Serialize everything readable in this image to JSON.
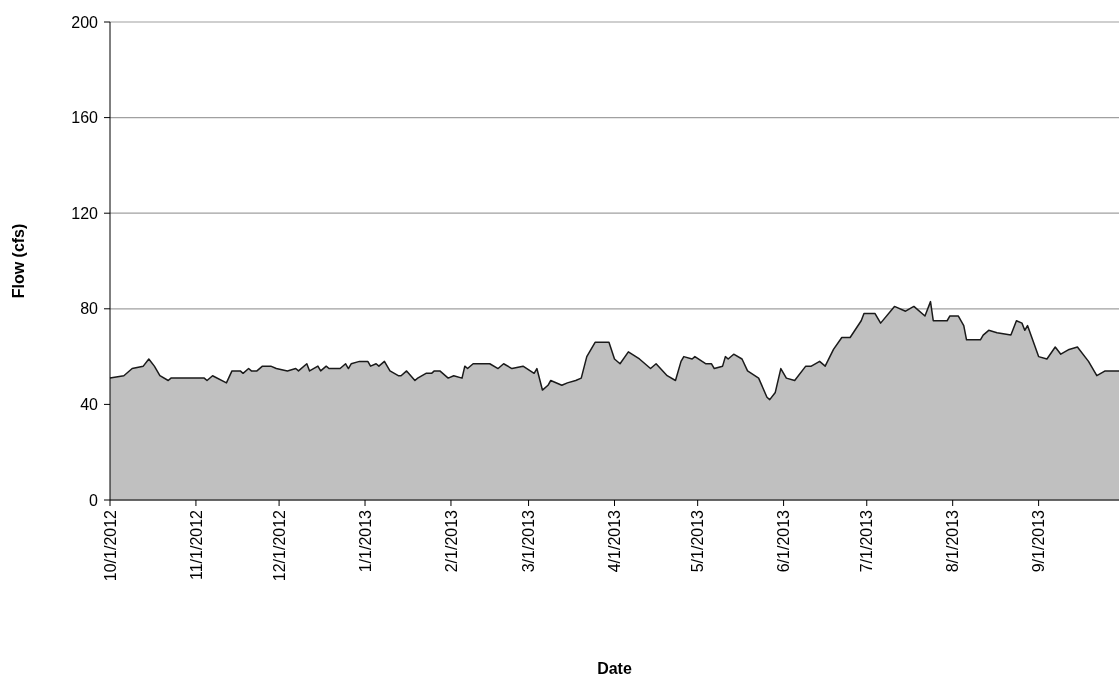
{
  "chart_data": {
    "type": "area",
    "xlabel": "Date",
    "ylabel": "Flow (cfs)",
    "x": [
      "2012-10-01",
      "2012-10-06",
      "2012-10-09",
      "2012-10-13",
      "2012-10-15",
      "2012-10-17",
      "2012-10-19",
      "2012-10-22",
      "2012-10-23",
      "2012-11-04",
      "2012-11-05",
      "2012-11-07",
      "2012-11-12",
      "2012-11-14",
      "2012-11-17",
      "2012-11-18",
      "2012-11-20",
      "2012-11-21",
      "2012-11-23",
      "2012-11-25",
      "2012-11-28",
      "2012-11-30",
      "2012-12-04",
      "2012-12-07",
      "2012-12-08",
      "2012-12-11",
      "2012-12-12",
      "2012-12-15",
      "2012-12-16",
      "2012-12-18",
      "2012-12-19",
      "2012-12-23",
      "2012-12-25",
      "2012-12-26",
      "2012-12-27",
      "2012-12-30",
      "2013-01-02",
      "2013-01-03",
      "2013-01-05",
      "2013-01-06",
      "2013-01-08",
      "2013-01-10",
      "2013-01-13",
      "2013-01-14",
      "2013-01-16",
      "2013-01-19",
      "2013-01-20",
      "2013-01-23",
      "2013-01-25",
      "2013-01-26",
      "2013-01-27",
      "2013-01-28",
      "2013-01-31",
      "2013-02-02",
      "2013-02-05",
      "2013-02-06",
      "2013-02-07",
      "2013-02-09",
      "2013-02-12",
      "2013-02-15",
      "2013-02-18",
      "2013-02-20",
      "2013-02-23",
      "2013-02-27",
      "2013-03-03",
      "2013-03-04",
      "2013-03-06",
      "2013-03-08",
      "2013-03-09",
      "2013-03-13",
      "2013-03-15",
      "2013-03-18",
      "2013-03-20",
      "2013-03-22",
      "2013-03-25",
      "2013-03-30",
      "2013-04-01",
      "2013-04-03",
      "2013-04-06",
      "2013-04-10",
      "2013-04-14",
      "2013-04-16",
      "2013-04-20",
      "2013-04-23",
      "2013-04-25",
      "2013-04-26",
      "2013-04-29",
      "2013-04-30",
      "2013-05-04",
      "2013-05-06",
      "2013-05-07",
      "2013-05-10",
      "2013-05-11",
      "2013-05-12",
      "2013-05-14",
      "2013-05-17",
      "2013-05-19",
      "2013-05-23",
      "2013-05-26",
      "2013-05-27",
      "2013-05-29",
      "2013-05-31",
      "2013-06-02",
      "2013-06-05",
      "2013-06-09",
      "2013-06-11",
      "2013-06-14",
      "2013-06-16",
      "2013-06-19",
      "2013-06-22",
      "2013-06-25",
      "2013-06-29",
      "2013-06-30",
      "2013-07-04",
      "2013-07-06",
      "2013-07-11",
      "2013-07-15",
      "2013-07-18",
      "2013-07-22",
      "2013-07-24",
      "2013-07-25",
      "2013-07-30",
      "2013-07-31",
      "2013-08-03",
      "2013-08-05",
      "2013-08-06",
      "2013-08-08",
      "2013-08-11",
      "2013-08-12",
      "2013-08-14",
      "2013-08-17",
      "2013-08-22",
      "2013-08-24",
      "2013-08-26",
      "2013-08-27",
      "2013-08-28",
      "2013-09-01",
      "2013-09-04",
      "2013-09-07",
      "2013-09-09",
      "2013-09-12",
      "2013-09-15",
      "2013-09-19",
      "2013-09-22",
      "2013-09-25",
      "2013-09-30"
    ],
    "series": [
      {
        "color": "#c0c0c0",
        "values": [
          51,
          52,
          55,
          56,
          59,
          56,
          52,
          50,
          51,
          51,
          50,
          52,
          49,
          54,
          54,
          53,
          55,
          54,
          54,
          56,
          56,
          55,
          54,
          55,
          54,
          57,
          54,
          56,
          54,
          56,
          55,
          55,
          57,
          55,
          57,
          58,
          58,
          56,
          57,
          56,
          58,
          54,
          52,
          52,
          54,
          50,
          51,
          53,
          53,
          54,
          54,
          54,
          51,
          52,
          51,
          56,
          55,
          57,
          57,
          57,
          55,
          57,
          55,
          56,
          53,
          55,
          46,
          48,
          50,
          48,
          49,
          50,
          51,
          60,
          66,
          66,
          59,
          57,
          62,
          59,
          55,
          57,
          52,
          50,
          58,
          60,
          59,
          60,
          57,
          57,
          55,
          56,
          60,
          59,
          61,
          59,
          54,
          51,
          43,
          42,
          45,
          55,
          51,
          50,
          56,
          56,
          58,
          56,
          63,
          68,
          68,
          75,
          78,
          78,
          74,
          81,
          79,
          81,
          77,
          83,
          75,
          75,
          77,
          77,
          73,
          67,
          67,
          67,
          69,
          71,
          70,
          69,
          75,
          74,
          71,
          73,
          60,
          59,
          64,
          61,
          63,
          64,
          58,
          52,
          54,
          54
        ]
      }
    ],
    "xlim": [
      "2012-10-01",
      "2013-09-30"
    ],
    "xticks": [
      {
        "value": "2012-10-01",
        "label": "10/1/2012"
      },
      {
        "value": "2012-11-01",
        "label": "11/1/2012"
      },
      {
        "value": "2012-12-01",
        "label": "12/1/2012"
      },
      {
        "value": "2013-01-01",
        "label": "1/1/2013"
      },
      {
        "value": "2013-02-01",
        "label": "2/1/2013"
      },
      {
        "value": "2013-03-01",
        "label": "3/1/2013"
      },
      {
        "value": "2013-04-01",
        "label": "4/1/2013"
      },
      {
        "value": "2013-05-01",
        "label": "5/1/2013"
      },
      {
        "value": "2013-06-01",
        "label": "6/1/2013"
      },
      {
        "value": "2013-07-01",
        "label": "7/1/2013"
      },
      {
        "value": "2013-08-01",
        "label": "8/1/2013"
      },
      {
        "value": "2013-09-01",
        "label": "9/1/2013"
      }
    ],
    "ylim": [
      0,
      200
    ],
    "yticks": [
      0,
      40,
      80,
      120,
      160,
      200
    ],
    "grid": "y"
  }
}
